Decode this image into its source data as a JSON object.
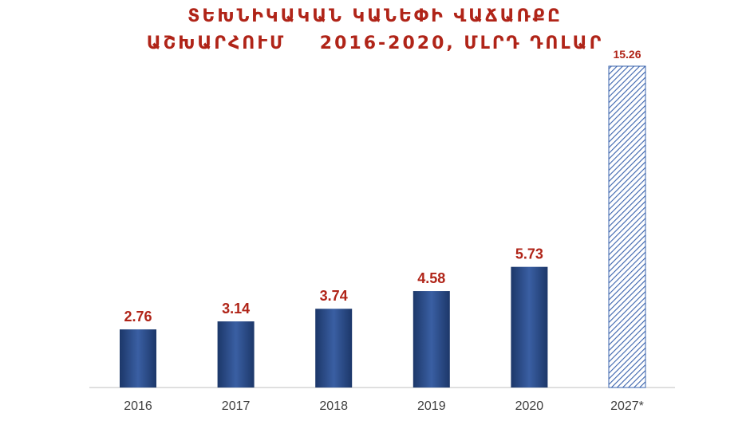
{
  "chart_data": {
    "type": "bar",
    "title_line1": "ՏԵԽՆԻԿԱԿԱՆ ԿԱՆԵՓԻ ՎԱՃԱՌՔԸ",
    "title_line2": "ԱՇԽԱՐՀՈՒՄ    2016-2020, ՄԼՐԴ ԴՈԼԱՐ",
    "categories": [
      "2016",
      "2017",
      "2018",
      "2019",
      "2020",
      "2027*"
    ],
    "values": [
      2.76,
      3.14,
      3.74,
      4.58,
      5.73,
      15.26
    ],
    "value_labels": [
      "2.76",
      "3.14",
      "3.74",
      "4.58",
      "5.73",
      "15.26"
    ],
    "forecast_index": 5,
    "ylim": [
      0,
      15.26
    ],
    "grid": false,
    "colors": {
      "bar": "#2d4f8e",
      "bar_dark": "#1c3769",
      "forecast_hatch": "#3a63ad",
      "label": "#b02418",
      "axis": "#bfbfbf"
    }
  }
}
